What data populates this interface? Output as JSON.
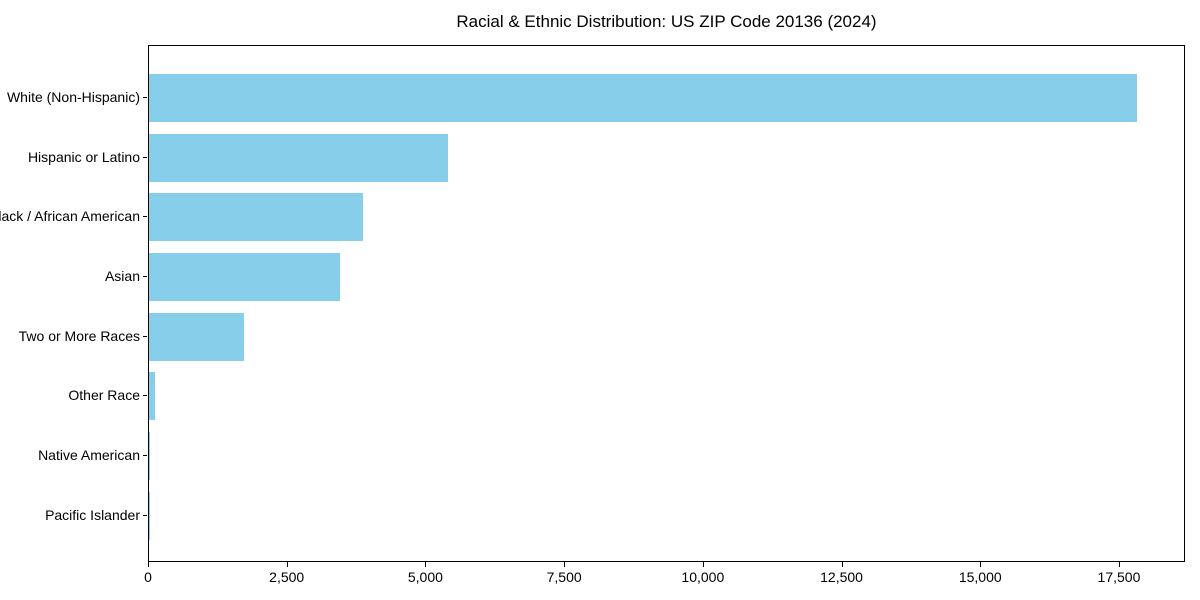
{
  "chart_data": {
    "type": "bar",
    "orientation": "horizontal",
    "title": "Racial & Ethnic Distribution: US ZIP Code 20136 (2024)",
    "categories": [
      "White (Non-Hispanic)",
      "Hispanic or Latino",
      "Black / African American",
      "Asian",
      "Two or More Races",
      "Other Race",
      "Native American",
      "Pacific Islander"
    ],
    "values": [
      17800,
      5390,
      3860,
      3450,
      1715,
      115,
      25,
      8
    ],
    "xlabel": "",
    "ylabel": "",
    "xlim": [
      0,
      18690
    ],
    "x_ticks": [
      0,
      2500,
      5000,
      7500,
      10000,
      12500,
      15000,
      17500
    ],
    "x_tick_labels": [
      "0",
      "2,500",
      "5,000",
      "7,500",
      "10,000",
      "12,500",
      "15,000",
      "17,500"
    ],
    "bar_color": "#87CEEB",
    "grid": false,
    "legend": "none",
    "background_color": "#ffffff",
    "text_color": "#000000"
  }
}
